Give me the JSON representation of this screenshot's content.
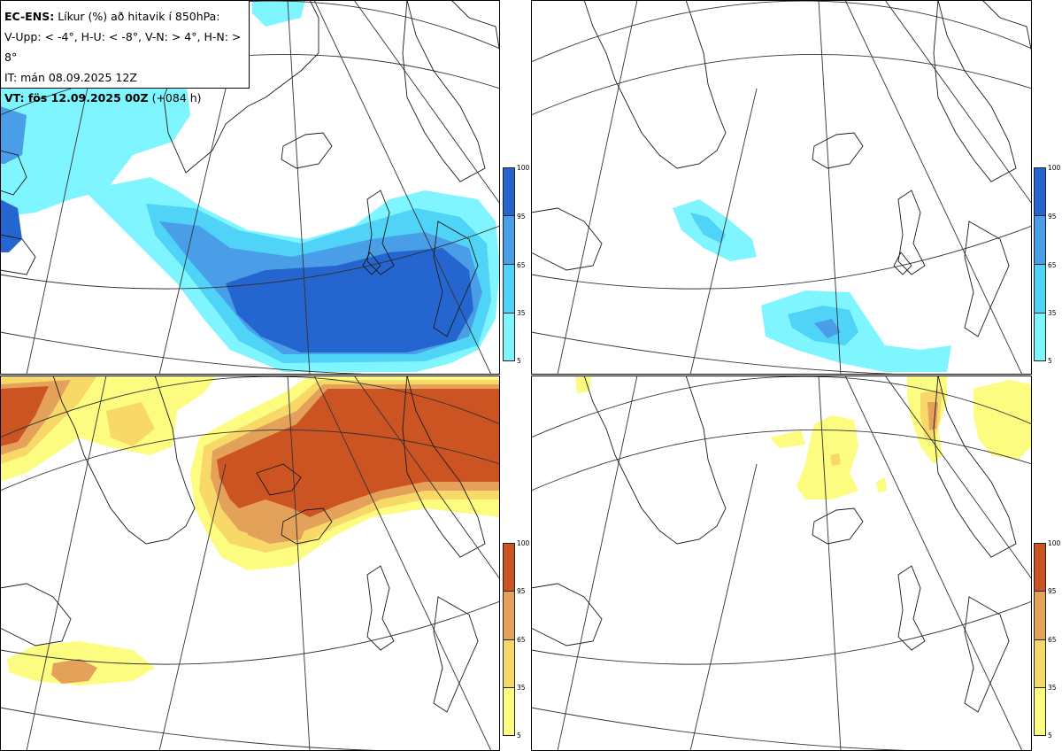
{
  "header": {
    "model": "EC-ENS:",
    "title": "Líkur (%) að hitavik í 850hPa:",
    "thresholds": "V-Upp: < -4°, H-U: < -8°, V-N: > 4°, H-N: > 8°",
    "init_time": "IT: mán 08.09.2025 12Z",
    "valid_label": "VT: fös 12.09.2025 00Z",
    "lead": "(+084 h)"
  },
  "colors": {
    "cold": [
      "#7ff5ff",
      "#4fd3f7",
      "#4a9ee8",
      "#2565cf"
    ],
    "warm": [
      "#fcfc80",
      "#f7d869",
      "#e4a15a",
      "#cc5422"
    ],
    "land_line": "#1a1a1a",
    "grid_line": "#333333"
  },
  "colorbar": {
    "ticks": [
      "100",
      "95",
      "65",
      "35",
      "5"
    ]
  }
}
